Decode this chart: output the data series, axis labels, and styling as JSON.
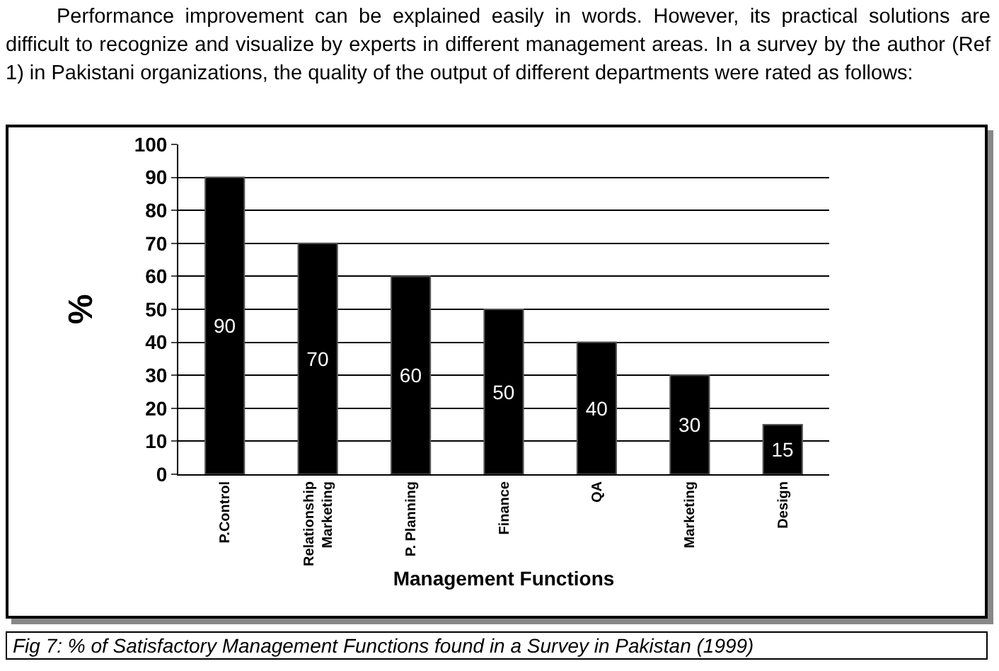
{
  "chart_data": {
    "type": "bar",
    "xlabel": "Management Functions",
    "ylabel": "%",
    "categories": [
      "P.Control",
      "Relationship Marketing",
      "P. Planning",
      "Finance",
      "QA",
      "Marketing",
      "Design"
    ],
    "values": [
      90,
      70,
      60,
      50,
      40,
      30,
      15
    ],
    "color": "#000000",
    "ylim": [
      0,
      100
    ],
    "yticks": [
      0,
      10,
      20,
      30,
      40,
      50,
      60,
      70,
      80,
      90,
      100
    ],
    "grid": "y",
    "legend": false,
    "data_labels": true,
    "annotations": [
      "Performance improvement can be explained easily in words.  However, its practical solutions are difficult to recognize and visualize by experts in different management areas.  In a survey by the author (Ref 1) in Pakistani organizations, the quality of the output of different departments were rated as follows:",
      "Fig 7:  % of Satisfactory Management Functions found in a Survey in Pakistan (1999)"
    ]
  }
}
